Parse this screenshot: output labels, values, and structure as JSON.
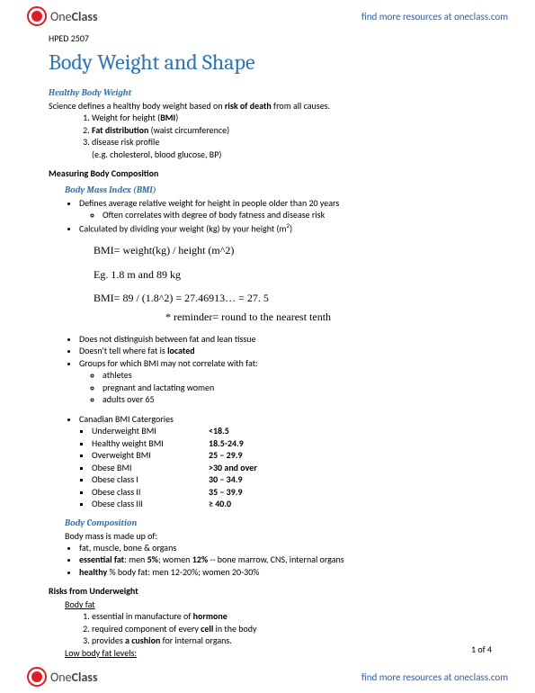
{
  "brand": {
    "one": "One",
    "class": "Class"
  },
  "headerLink": "find more resources at oneclass.com",
  "courseCode": "HPED 2507",
  "title": "Body Weight and Shape",
  "s1": {
    "head": "Healthy Body Weight",
    "intro_pre": "Science defines a healthy body weight based on ",
    "intro_bold": "risk of death",
    "intro_post": " from all causes.",
    "li1_pre": "Weight for height (",
    "li1_bold": "BMI",
    "li1_post": ")",
    "li2_bold": "Fat distribution",
    "li2_post": " (waist circumference)",
    "li3": "disease risk profile",
    "li3eg": "(e.g. cholesterol, blood glucose, BP)"
  },
  "s2": {
    "head": "Measuring Body Composition",
    "sub": "Body Mass Index (BMI)",
    "b1": "Defines average relative weight for height in people older than 20 years",
    "b1a": "Often correlates with degree of body fatness and disease risk",
    "b2_pre": "Calculated by dividing your weight (kg) by your height (m",
    "b2_post": ")",
    "f1": "BMI= weight(kg) / height (m^2)",
    "f2": "Eg. 1.8 m and 89 kg",
    "f3": "BMI= 89 / (1.8^2) = 27.46913… = 27. 5",
    "reminder": "* reminder= round to the nearest tenth",
    "b3": "Does not distinguish between fat and lean tissue",
    "b4_pre": "Doesn't tell where fat is ",
    "b4_bold": "located",
    "b5": "Groups for which BMI may not correlate with fat:",
    "b5a": "athletes",
    "b5b": "pregnant and lactating women",
    "b5c": "adults over 65",
    "cat_head": "Canadian BMI Catergories",
    "cats": [
      {
        "label": "Underweight BMI",
        "val": "<18.5"
      },
      {
        "label": "Healthy weight BMI",
        "val": "18.5-24.9"
      },
      {
        "label": "Overweight BMI",
        "val": "25 – 29.9"
      },
      {
        "label": "Obese BMI",
        "val": ">30 and over"
      },
      {
        "label": "Obese class I",
        "val": "30 – 34.9"
      },
      {
        "label": "Obese class II",
        "val": "35 – 39.9"
      },
      {
        "label": "Obese class III",
        "val": "≥ 40.0"
      }
    ]
  },
  "s3": {
    "head": "Body Composition",
    "intro": "Body mass is made up of:",
    "b1": "fat, muscle, bone & organs",
    "b2_a": "essential fat",
    "b2_b": ": men ",
    "b2_c": "5%",
    "b2_d": "; women ",
    "b2_e": "12%",
    "b2_f": " -- bone marrow, CNS, internal organs",
    "b3_a": "healthy",
    "b3_b": " % body fat: men 12-20%; women 20-30%"
  },
  "s4": {
    "head": "Risks from Underweight",
    "sub1": "Body fat",
    "li1_pre": "essential in manufacture of ",
    "li1_bold": "hormone",
    "li2_pre": "required component of every ",
    "li2_bold": "cell",
    "li2_post": " in the body",
    "li3_pre": "provides ",
    "li3_bold": "a cushion",
    "li3_post": " for internal organs.",
    "sub2": "Low body fat levels:"
  },
  "pagenum": "1 of 4"
}
